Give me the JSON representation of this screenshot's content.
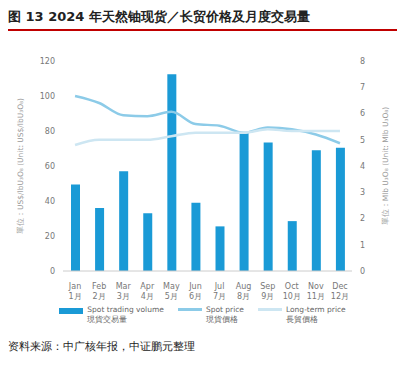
{
  "chart_data": {
    "type": "bar",
    "title": "图 13 2024 年天然铀现货／长贸价格及月度交易量",
    "source": "资料来源：中广核年报，中证鹏元整理",
    "categories": [
      "Jan 1月",
      "Feb 2月",
      "Mar 3月",
      "Apr 4月",
      "May 5月",
      "Jun 6月",
      "Jul 7月",
      "Aug 8月",
      "Sep 9月",
      "Oct 10月",
      "Nov 11月",
      "Dec 12月"
    ],
    "y_label": "單位：US$/lbU₃O₈ (Unit: US$/lbU₃O₈)",
    "y2_label": "單位：Mlb U₃O₈ (Unit: Mlb U₃O₈)",
    "ylim": [
      0,
      120
    ],
    "yticks": [
      0,
      20,
      40,
      60,
      80,
      100,
      120
    ],
    "y2lim": [
      0,
      8
    ],
    "y2ticks": [
      0,
      1,
      2,
      3,
      4,
      5,
      6,
      7,
      8
    ],
    "grid": false,
    "legend": "bottom",
    "series": [
      {
        "name": "Spot trading volume 現貨交易量",
        "type": "bar",
        "axis": "y2",
        "color": "#1a9ad6",
        "values": [
          3.3,
          2.4,
          3.8,
          2.2,
          7.5,
          2.6,
          1.7,
          5.3,
          4.9,
          1.9,
          4.6,
          4.7
        ]
      },
      {
        "name": "Spot price 現貨價格",
        "type": "line",
        "color": "#8ccbe8",
        "values": [
          100,
          96,
          89,
          88.5,
          91,
          84,
          83,
          79,
          82,
          81,
          78,
          73
        ]
      },
      {
        "name": "Long-term price 長貿價格",
        "type": "line",
        "color": "#cde6f2",
        "values": [
          72,
          75,
          75,
          75,
          77,
          79,
          79,
          79,
          81,
          80,
          80,
          80
        ]
      }
    ]
  }
}
